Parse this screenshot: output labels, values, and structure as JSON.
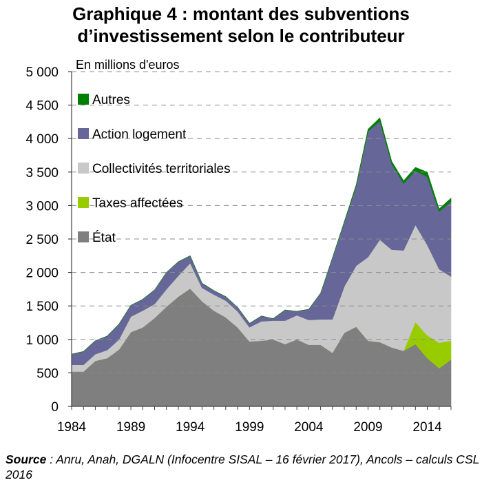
{
  "title_line1": "Graphique 4 : montant des subventions",
  "title_line2": "d’investissement selon le contributeur",
  "source_label": "Source",
  "source_text": " : Anru, Anah, DGALN (Infocentre SISAL – 16 février 2017), Ancols – calculs CSL 2016",
  "chart_data": {
    "type": "area",
    "stacked": true,
    "unit_label": "En millions d'euros",
    "x": [
      1984,
      1985,
      1986,
      1987,
      1988,
      1989,
      1990,
      1991,
      1992,
      1993,
      1994,
      1995,
      1996,
      1997,
      1998,
      1999,
      2000,
      2001,
      2002,
      2003,
      2004,
      2005,
      2006,
      2007,
      2008,
      2009,
      2010,
      2011,
      2012,
      2013,
      2014,
      2015,
      2016
    ],
    "xticks": [
      "1984",
      "1989",
      "1994",
      "1999",
      "2004",
      "2009",
      "2014"
    ],
    "yticks": [
      "0",
      "500",
      "1 000",
      "1 500",
      "2 000",
      "2 500",
      "3 000",
      "3 500",
      "4 000",
      "4 500",
      "5 000"
    ],
    "ylim": [
      0,
      5000
    ],
    "grid": "dashed horizontal",
    "legend_position": "top-left",
    "series": [
      {
        "name": "État",
        "color": "#7f7f7f",
        "values": [
          520,
          520,
          680,
          720,
          850,
          1110,
          1180,
          1320,
          1490,
          1640,
          1760,
          1570,
          1430,
          1330,
          1180,
          970,
          980,
          1000,
          930,
          1000,
          920,
          920,
          800,
          1100,
          1190,
          980,
          960,
          880,
          830,
          930,
          720,
          570,
          700
        ]
      },
      {
        "name": "Taxes affectées",
        "color": "#99cc00",
        "values": [
          0,
          0,
          0,
          0,
          0,
          0,
          0,
          0,
          0,
          0,
          0,
          0,
          0,
          0,
          0,
          0,
          0,
          0,
          0,
          0,
          0,
          0,
          0,
          0,
          0,
          0,
          0,
          0,
          0,
          330,
          340,
          380,
          280
        ]
      },
      {
        "name": "Collectivités territoriales",
        "color": "#c8c8c8",
        "values": [
          100,
          100,
          100,
          120,
          150,
          230,
          250,
          210,
          260,
          310,
          380,
          200,
          240,
          250,
          240,
          210,
          290,
          280,
          350,
          360,
          370,
          380,
          500,
          690,
          910,
          1250,
          1530,
          1460,
          1500,
          1450,
          1350,
          1100,
          960
        ]
      },
      {
        "name": "Action logement",
        "color": "#666699",
        "values": [
          160,
          200,
          200,
          210,
          230,
          170,
          170,
          210,
          250,
          210,
          110,
          70,
          60,
          60,
          60,
          60,
          80,
          30,
          160,
          60,
          160,
          390,
          920,
          960,
          1190,
          1880,
          1770,
          1280,
          1000,
          810,
          1020,
          860,
          1120
        ]
      },
      {
        "name": "Autres",
        "color": "#008000",
        "values": [
          0,
          0,
          0,
          0,
          0,
          0,
          0,
          0,
          0,
          0,
          0,
          0,
          0,
          0,
          0,
          0,
          0,
          0,
          0,
          0,
          0,
          0,
          0,
          10,
          20,
          30,
          50,
          40,
          40,
          50,
          70,
          40,
          50
        ]
      }
    ]
  }
}
